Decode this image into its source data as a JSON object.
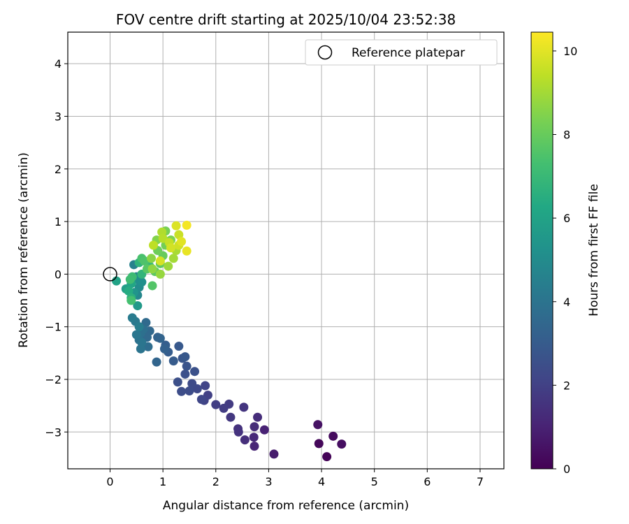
{
  "chart_data": {
    "type": "scatter",
    "title": "FOV centre drift starting at 2025/10/04 23:52:38",
    "xlabel": "Angular distance from reference (arcmin)",
    "ylabel": "Rotation from reference (arcmin)",
    "xlim": [
      -0.8,
      7.45
    ],
    "ylim": [
      -3.7,
      4.6
    ],
    "xticks": [
      0,
      1,
      2,
      3,
      4,
      5,
      6,
      7
    ],
    "xtick_labels": [
      "0",
      "1",
      "2",
      "3",
      "4",
      "5",
      "6",
      "7"
    ],
    "yticks": [
      -3,
      -2,
      -1,
      0,
      1,
      2,
      3,
      4
    ],
    "ytick_labels": [
      "−3",
      "−2",
      "−1",
      "0",
      "1",
      "2",
      "3",
      "4"
    ],
    "grid": true,
    "legend": {
      "position": "top-right",
      "label": "Reference platepar"
    },
    "reference_point": {
      "x": 0,
      "y": 0
    },
    "colorbar": {
      "label": "Hours from first FF file",
      "range": [
        0,
        10.45
      ],
      "ticks": [
        0,
        2,
        4,
        6,
        8,
        10
      ],
      "tick_labels": [
        "0",
        "2",
        "4",
        "6",
        "8",
        "10"
      ],
      "colormap": "viridis"
    },
    "points": [
      {
        "x": 4.1,
        "y": -3.47,
        "t": 0.1
      },
      {
        "x": 3.95,
        "y": -3.22,
        "t": 0.2
      },
      {
        "x": 4.22,
        "y": -3.08,
        "t": 0.3
      },
      {
        "x": 4.38,
        "y": -3.23,
        "t": 0.4
      },
      {
        "x": 3.93,
        "y": -2.86,
        "t": 0.5
      },
      {
        "x": 3.1,
        "y": -3.42,
        "t": 0.8
      },
      {
        "x": 2.92,
        "y": -2.96,
        "t": 1.0
      },
      {
        "x": 2.73,
        "y": -3.27,
        "t": 1.1
      },
      {
        "x": 2.72,
        "y": -3.1,
        "t": 1.2
      },
      {
        "x": 2.73,
        "y": -2.9,
        "t": 1.3
      },
      {
        "x": 2.79,
        "y": -2.72,
        "t": 1.35
      },
      {
        "x": 2.55,
        "y": -3.15,
        "t": 1.4
      },
      {
        "x": 2.42,
        "y": -2.94,
        "t": 1.5
      },
      {
        "x": 2.43,
        "y": -3.0,
        "t": 1.55
      },
      {
        "x": 2.53,
        "y": -2.53,
        "t": 1.6
      },
      {
        "x": 2.28,
        "y": -2.72,
        "t": 1.7
      },
      {
        "x": 2.25,
        "y": -2.47,
        "t": 1.8
      },
      {
        "x": 2.15,
        "y": -2.55,
        "t": 1.85
      },
      {
        "x": 2.0,
        "y": -2.48,
        "t": 1.9
      },
      {
        "x": 1.85,
        "y": -2.3,
        "t": 2.0
      },
      {
        "x": 1.78,
        "y": -2.4,
        "t": 2.05
      },
      {
        "x": 1.8,
        "y": -2.12,
        "t": 2.1
      },
      {
        "x": 1.73,
        "y": -2.38,
        "t": 2.2
      },
      {
        "x": 1.65,
        "y": -2.18,
        "t": 2.3
      },
      {
        "x": 1.55,
        "y": -2.08,
        "t": 2.35
      },
      {
        "x": 1.5,
        "y": -2.22,
        "t": 2.4
      },
      {
        "x": 1.35,
        "y": -2.23,
        "t": 2.45
      },
      {
        "x": 1.28,
        "y": -2.05,
        "t": 2.5
      },
      {
        "x": 1.42,
        "y": -1.9,
        "t": 2.55
      },
      {
        "x": 1.6,
        "y": -1.85,
        "t": 2.6
      },
      {
        "x": 1.45,
        "y": -1.75,
        "t": 2.7
      },
      {
        "x": 1.37,
        "y": -1.6,
        "t": 2.8
      },
      {
        "x": 1.42,
        "y": -1.57,
        "t": 2.85
      },
      {
        "x": 1.3,
        "y": -1.37,
        "t": 2.9
      },
      {
        "x": 1.2,
        "y": -1.65,
        "t": 3.0
      },
      {
        "x": 1.1,
        "y": -1.48,
        "t": 3.05
      },
      {
        "x": 1.05,
        "y": -1.35,
        "t": 3.1
      },
      {
        "x": 1.03,
        "y": -1.42,
        "t": 3.2
      },
      {
        "x": 0.9,
        "y": -1.2,
        "t": 3.3
      },
      {
        "x": 0.95,
        "y": -1.22,
        "t": 3.35
      },
      {
        "x": 0.88,
        "y": -1.67,
        "t": 3.4
      },
      {
        "x": 0.75,
        "y": -1.08,
        "t": 3.5
      },
      {
        "x": 0.7,
        "y": -1.2,
        "t": 3.55
      },
      {
        "x": 0.68,
        "y": -0.92,
        "t": 3.6
      },
      {
        "x": 0.72,
        "y": -1.38,
        "t": 3.7
      },
      {
        "x": 0.63,
        "y": -1.05,
        "t": 3.8
      },
      {
        "x": 0.58,
        "y": -1.12,
        "t": 3.85
      },
      {
        "x": 0.55,
        "y": -1.25,
        "t": 3.9
      },
      {
        "x": 0.58,
        "y": -1.42,
        "t": 4.0
      },
      {
        "x": 0.6,
        "y": -1.3,
        "t": 4.05
      },
      {
        "x": 0.5,
        "y": -1.15,
        "t": 4.1
      },
      {
        "x": 0.48,
        "y": -0.9,
        "t": 4.2
      },
      {
        "x": 0.42,
        "y": -0.83,
        "t": 4.3
      },
      {
        "x": 0.55,
        "y": -1.0,
        "t": 4.4
      },
      {
        "x": 0.45,
        "y": 0.18,
        "t": 4.5
      },
      {
        "x": 0.5,
        "y": -0.05,
        "t": 4.6
      },
      {
        "x": 0.52,
        "y": -0.4,
        "t": 4.8
      },
      {
        "x": 0.55,
        "y": -0.25,
        "t": 5.0
      },
      {
        "x": 0.48,
        "y": -0.1,
        "t": 5.1
      },
      {
        "x": 0.6,
        "y": -0.15,
        "t": 5.2
      },
      {
        "x": 0.45,
        "y": -0.35,
        "t": 5.4
      },
      {
        "x": 0.52,
        "y": -0.6,
        "t": 5.6
      },
      {
        "x": 0.3,
        "y": -0.28,
        "t": 5.8
      },
      {
        "x": 0.12,
        "y": -0.13,
        "t": 6.0
      },
      {
        "x": 0.4,
        "y": -0.18,
        "t": 6.2
      },
      {
        "x": 0.35,
        "y": -0.32,
        "t": 6.4
      },
      {
        "x": 0.4,
        "y": -0.45,
        "t": 6.6
      },
      {
        "x": 0.55,
        "y": 0.22,
        "t": 6.7
      },
      {
        "x": 0.6,
        "y": 0.0,
        "t": 6.8
      },
      {
        "x": 0.75,
        "y": 0.15,
        "t": 7.0
      },
      {
        "x": 0.42,
        "y": -0.05,
        "t": 7.1
      },
      {
        "x": 0.38,
        "y": -0.1,
        "t": 7.2
      },
      {
        "x": 0.4,
        "y": -0.5,
        "t": 7.3
      },
      {
        "x": 0.6,
        "y": 0.3,
        "t": 7.4
      },
      {
        "x": 0.65,
        "y": 0.25,
        "t": 7.5
      },
      {
        "x": 0.8,
        "y": -0.22,
        "t": 7.6
      },
      {
        "x": 0.7,
        "y": 0.1,
        "t": 7.7
      },
      {
        "x": 0.85,
        "y": 0.05,
        "t": 7.8
      },
      {
        "x": 0.95,
        "y": 0.2,
        "t": 7.9
      },
      {
        "x": 1.0,
        "y": 0.35,
        "t": 8.0
      },
      {
        "x": 0.9,
        "y": 0.45,
        "t": 8.1
      },
      {
        "x": 1.05,
        "y": 0.55,
        "t": 8.2
      },
      {
        "x": 1.05,
        "y": 0.82,
        "t": 8.3
      },
      {
        "x": 1.15,
        "y": 0.65,
        "t": 8.4
      },
      {
        "x": 0.88,
        "y": 0.65,
        "t": 8.5
      },
      {
        "x": 0.78,
        "y": 0.3,
        "t": 8.6
      },
      {
        "x": 0.8,
        "y": 0.1,
        "t": 8.7
      },
      {
        "x": 0.95,
        "y": 0.0,
        "t": 8.8
      },
      {
        "x": 1.1,
        "y": 0.15,
        "t": 8.9
      },
      {
        "x": 1.2,
        "y": 0.3,
        "t": 9.0
      },
      {
        "x": 1.25,
        "y": 0.45,
        "t": 9.1
      },
      {
        "x": 0.98,
        "y": 0.8,
        "t": 9.2
      },
      {
        "x": 1.0,
        "y": 0.68,
        "t": 9.3
      },
      {
        "x": 0.82,
        "y": 0.55,
        "t": 9.4
      },
      {
        "x": 1.12,
        "y": 0.6,
        "t": 9.5
      },
      {
        "x": 1.3,
        "y": 0.75,
        "t": 9.6
      },
      {
        "x": 1.3,
        "y": 0.55,
        "t": 9.7
      },
      {
        "x": 1.15,
        "y": 0.5,
        "t": 9.75
      },
      {
        "x": 0.95,
        "y": 0.25,
        "t": 9.8
      },
      {
        "x": 1.25,
        "y": 0.92,
        "t": 9.9
      },
      {
        "x": 1.35,
        "y": 0.62,
        "t": 10.0
      },
      {
        "x": 1.45,
        "y": 0.44,
        "t": 10.1
      },
      {
        "x": 1.45,
        "y": 0.93,
        "t": 10.3
      }
    ]
  }
}
